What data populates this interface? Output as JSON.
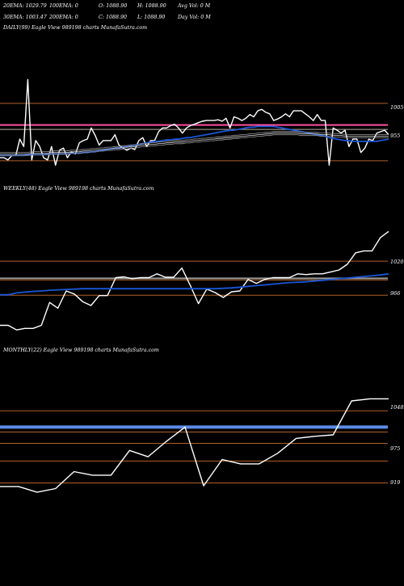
{
  "header": {
    "row1": [
      "20EMA: 1029.79",
      "100EMA: 0",
      "O: 1088.90",
      "H: 1088.90",
      "Avg Vol: 0  M"
    ],
    "row2": [
      "30EMA: 1003.47",
      "200EMA: 0",
      "C: 1088.90",
      "L: 1088.90",
      "Day Vol: 0  M"
    ]
  },
  "colors": {
    "background": "#000000",
    "price_line": "#ffffff",
    "ema_line": "#1a56d6",
    "level_line": "#b0602a",
    "grey_line": "#9a9a9a",
    "pink_line": "#ff4fa0"
  },
  "chart_data": [
    {
      "type": "line",
      "title": "DAILY(99) Eagle  View  989198  charts MunafaSutra.com",
      "y_tick_labels": [
        "1005",
        "955"
      ],
      "ylim": [
        918,
        1108
      ],
      "x": [
        0,
        1,
        2,
        3,
        4,
        5,
        6,
        7,
        8,
        9,
        10,
        11,
        12,
        13,
        14,
        15,
        16,
        17,
        18,
        19,
        20,
        21,
        22,
        23,
        24,
        25,
        26,
        27,
        28,
        29,
        30,
        31,
        32,
        33,
        34,
        35,
        36,
        37,
        38,
        39,
        40,
        41,
        42,
        43,
        44,
        45,
        46,
        47,
        48,
        49,
        50,
        51,
        52,
        53,
        54,
        55,
        56,
        57,
        58,
        59,
        60,
        61,
        62,
        63,
        64,
        65,
        66,
        67,
        68,
        69,
        70,
        71,
        72,
        73,
        74,
        75,
        76,
        77,
        78,
        79,
        80,
        81,
        82,
        83,
        84,
        85,
        86,
        87,
        88,
        89,
        90,
        91,
        92,
        93,
        94,
        95,
        96,
        97,
        98
      ],
      "series": [
        {
          "role": "price",
          "values": [
            945,
            945,
            942,
            948,
            948,
            970,
            960,
            1050,
            942,
            968,
            960,
            945,
            942,
            960,
            935,
            955,
            958,
            945,
            953,
            950,
            965,
            968,
            970,
            985,
            975,
            962,
            968,
            968,
            968,
            976,
            962,
            958,
            955,
            958,
            956,
            968,
            972,
            960,
            968,
            968,
            980,
            985,
            985,
            988,
            990,
            985,
            978,
            985,
            988,
            990,
            992,
            994,
            995,
            995,
            995,
            996,
            994,
            998,
            985,
            1000,
            998,
            995,
            998,
            1003,
            1000,
            1008,
            1010,
            1006,
            1004,
            995,
            997,
            1000,
            1004,
            1000,
            1008,
            1008,
            1008,
            1004,
            1000,
            995,
            1003,
            995,
            995,
            935,
            985,
            982,
            978,
            982,
            960,
            970,
            970,
            952,
            958,
            970,
            968,
            978,
            980,
            982,
            976
          ]
        },
        {
          "role": "ema",
          "values": [
            948,
            948,
            948,
            948,
            948,
            948,
            948,
            949,
            949,
            949,
            949,
            949,
            950,
            950,
            950,
            950,
            950,
            950,
            951,
            951,
            951,
            952,
            952,
            953,
            953,
            954,
            955,
            956,
            957,
            958,
            958,
            959,
            960,
            961,
            962,
            963,
            964,
            965,
            966,
            967,
            967,
            968,
            969,
            969,
            970,
            970,
            971,
            972,
            972,
            973,
            974,
            975,
            976,
            977,
            978,
            979,
            980,
            981,
            982,
            982,
            983,
            984,
            985,
            986,
            986,
            987,
            987,
            987,
            987,
            987,
            986,
            985,
            984,
            983,
            982,
            981,
            980,
            979,
            978,
            977,
            976,
            975,
            974,
            972,
            971,
            970,
            969,
            968,
            968,
            967,
            967,
            967,
            967,
            967,
            967,
            967,
            968,
            969,
            970
          ]
        },
        {
          "role": "slow-ema",
          "values": [
            950,
            950,
            950,
            950,
            950,
            950,
            950,
            950,
            951,
            951,
            951,
            951,
            951,
            952,
            952,
            952,
            952,
            952,
            953,
            953,
            953,
            954,
            954,
            955,
            955,
            956,
            956,
            957,
            957,
            958,
            958,
            959,
            959,
            960,
            960,
            961,
            962,
            962,
            963,
            963,
            964,
            964,
            965,
            965,
            966,
            966,
            966,
            967,
            967,
            968,
            968,
            969,
            969,
            970,
            970,
            971,
            971,
            972,
            972,
            973,
            973,
            974,
            974,
            975,
            975,
            976,
            976,
            977,
            977,
            978,
            978,
            978,
            978,
            978,
            978,
            978,
            977,
            977,
            977,
            977,
            977,
            976,
            976,
            976,
            975,
            975,
            975,
            974,
            974,
            974,
            974,
            974,
            974,
            974,
            974,
            974,
            974,
            974,
            974
          ]
        }
      ],
      "levels": [
        1018,
        989,
        983,
        941
      ]
    },
    {
      "type": "line",
      "title": "WEEKLY(48) Eagle  View  989198  charts MunafaSutra.com",
      "y_tick_labels": [
        "1020",
        "966"
      ],
      "ylim": [
        833,
        1140
      ],
      "x": [
        0,
        1,
        2,
        3,
        4,
        5,
        6,
        7,
        8,
        9,
        10,
        11,
        12,
        13,
        14,
        15,
        16,
        17,
        18,
        19,
        20,
        21,
        22,
        23,
        24,
        25,
        26,
        27,
        28,
        29,
        30,
        31,
        32,
        33,
        34,
        35,
        36,
        37,
        38,
        39,
        40,
        41,
        42,
        43,
        44,
        45,
        46,
        47
      ],
      "series": [
        {
          "role": "price",
          "values": [
            870,
            870,
            858,
            862,
            862,
            870,
            930,
            915,
            960,
            952,
            932,
            922,
            948,
            948,
            995,
            997,
            992,
            995,
            995,
            1005,
            996,
            996,
            1020,
            975,
            927,
            965,
            956,
            943,
            958,
            960,
            990,
            980,
            990,
            995,
            995,
            995,
            1005,
            1003,
            1005,
            1005,
            1010,
            1015,
            1030,
            1060,
            1065,
            1065,
            1100,
            1116
          ]
        },
        {
          "role": "ema",
          "values": [
            950,
            950,
            955,
            957,
            959,
            960,
            962,
            963,
            964,
            965,
            966,
            966,
            966,
            966,
            966,
            966,
            966,
            966,
            966,
            966,
            966,
            966,
            966,
            966,
            966,
            966,
            966,
            967,
            968,
            970,
            972,
            974,
            976,
            978,
            980,
            982,
            983,
            984,
            986,
            988,
            990,
            992,
            994,
            996,
            998,
            1000,
            1002,
            1005
          ]
        }
      ],
      "levels": [
        1038,
        993,
        989,
        949
      ]
    },
    {
      "type": "line",
      "title": "MONTHLY(22) Eagle  View  989198  charts MunafaSutra.com",
      "y_tick_labels": [
        "1048",
        "975",
        "919"
      ],
      "ylim": [
        909,
        1069
      ],
      "x": [
        0,
        1,
        2,
        3,
        4,
        5,
        6,
        7,
        8,
        9,
        10,
        11,
        12,
        13,
        14,
        15,
        16,
        17,
        18,
        19,
        20,
        21
      ],
      "series": [
        {
          "role": "price",
          "values": [
            924,
            924,
            916,
            921,
            945,
            940,
            940,
            975,
            966,
            988,
            1008,
            925,
            962,
            956,
            956,
            971,
            992,
            995,
            997,
            1045,
            1048,
            1048
          ]
        }
      ],
      "levels": [
        1031,
        1001,
        985,
        960,
        929
      ],
      "reference": 1008
    }
  ]
}
